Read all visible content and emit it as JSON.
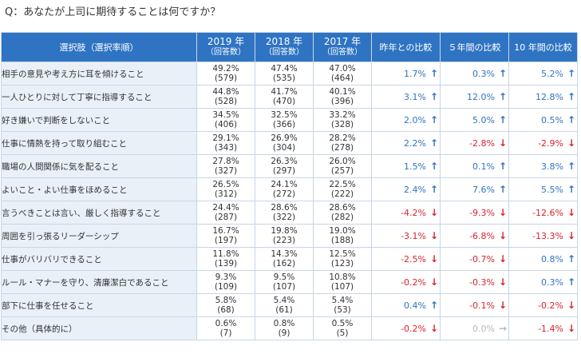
{
  "question": "Q：あなたが上司に期待することは何ですか？",
  "header": {
    "choice": "選択肢（選択率順）",
    "years": [
      {
        "year": "2019 年",
        "sub": "（回答数）"
      },
      {
        "year": "2018 年",
        "sub": "（回答数）"
      },
      {
        "year": "2017 年",
        "sub": "（回答数）"
      }
    ],
    "compare": [
      "昨年との比較",
      "５年間の比較",
      "10 年間の比較"
    ]
  },
  "colors": {
    "header": "#2f74c3",
    "choice_bg": "#e9f0f8",
    "up": "#2f74c3",
    "down": "#d9232e",
    "flat": "#b8b8b8",
    "border": "#c8d6e6"
  },
  "chart_data": {
    "type": "table",
    "rows": [
      {
        "label": "相手の意見や考え方に耳を傾けること",
        "y2019": "49.2%",
        "n2019": "(579)",
        "y2018": "47.4%",
        "n2018": "(535)",
        "y2017": "47.0%",
        "n2017": "(464)",
        "c1": "1.7%",
        "d1": "up",
        "c5": "0.3%",
        "d5": "up",
        "c10": "5.2%",
        "d10": "up"
      },
      {
        "label": "一人ひとりに対して丁寧に指導すること",
        "y2019": "44.8%",
        "n2019": "(528)",
        "y2018": "41.7%",
        "n2018": "(470)",
        "y2017": "40.1%",
        "n2017": "(396)",
        "c1": "3.1%",
        "d1": "up",
        "c5": "12.0%",
        "d5": "up",
        "c10": "12.8%",
        "d10": "up"
      },
      {
        "label": "好き嫌いで判断をしないこと",
        "y2019": "34.5%",
        "n2019": "(406)",
        "y2018": "32.5%",
        "n2018": "(366)",
        "y2017": "33.2%",
        "n2017": "(328)",
        "c1": "2.0%",
        "d1": "up",
        "c5": "5.0%",
        "d5": "up",
        "c10": "0.5%",
        "d10": "up"
      },
      {
        "label": "仕事に情熱を持って取り組むこと",
        "y2019": "29.1%",
        "n2019": "(343)",
        "y2018": "26.9%",
        "n2018": "(304)",
        "y2017": "28.2%",
        "n2017": "(278)",
        "c1": "2.2%",
        "d1": "up",
        "c5": "-2.8%",
        "d5": "down",
        "c10": "-2.9%",
        "d10": "down"
      },
      {
        "label": "職場の人間関係に気を配ること",
        "y2019": "27.8%",
        "n2019": "(327)",
        "y2018": "26.3%",
        "n2018": "(297)",
        "y2017": "26.0%",
        "n2017": "(257)",
        "c1": "1.5%",
        "d1": "up",
        "c5": "0.1%",
        "d5": "up",
        "c10": "3.8%",
        "d10": "up"
      },
      {
        "label": "よいこと・よい仕事をほめること",
        "y2019": "26.5%",
        "n2019": "(312)",
        "y2018": "24.1%",
        "n2018": "(272)",
        "y2017": "22.5%",
        "n2017": "(222)",
        "c1": "2.4%",
        "d1": "up",
        "c5": "7.6%",
        "d5": "up",
        "c10": "5.5%",
        "d10": "up"
      },
      {
        "label": "言うべきことは言い、厳しく指導すること",
        "y2019": "24.4%",
        "n2019": "(287)",
        "y2018": "28.6%",
        "n2018": "(322)",
        "y2017": "28.6%",
        "n2017": "(282)",
        "c1": "-4.2%",
        "d1": "down",
        "c5": "-9.3%",
        "d5": "down",
        "c10": "-12.6%",
        "d10": "down"
      },
      {
        "label": "周囲を引っ張るリーダーシップ",
        "y2019": "16.7%",
        "n2019": "(197)",
        "y2018": "19.8%",
        "n2018": "(223)",
        "y2017": "19.0%",
        "n2017": "(188)",
        "c1": "-3.1%",
        "d1": "down",
        "c5": "-6.8%",
        "d5": "down",
        "c10": "-13.3%",
        "d10": "down"
      },
      {
        "label": "仕事がバリバリできること",
        "y2019": "11.8%",
        "n2019": "(139)",
        "y2018": "14.3%",
        "n2018": "(162)",
        "y2017": "12.5%",
        "n2017": "(123)",
        "c1": "-2.5%",
        "d1": "down",
        "c5": "-0.7%",
        "d5": "down",
        "c10": "0.8%",
        "d10": "up"
      },
      {
        "label": "ルール・マナーを守り、清廉潔白であること",
        "y2019": "9.3%",
        "n2019": "(109)",
        "y2018": "9.5%",
        "n2018": "(107)",
        "y2017": "10.8%",
        "n2017": "(107)",
        "c1": "-0.2%",
        "d1": "down",
        "c5": "-0.3%",
        "d5": "down",
        "c10": "0.3%",
        "d10": "up"
      },
      {
        "label": "部下に仕事を任せること",
        "y2019": "5.8%",
        "n2019": "(68)",
        "y2018": "5.4%",
        "n2018": "(61)",
        "y2017": "5.4%",
        "n2017": "(53)",
        "c1": "0.4%",
        "d1": "up",
        "c5": "-0.1%",
        "d5": "down",
        "c10": "-0.2%",
        "d10": "down"
      },
      {
        "label": "その他（具体的に）",
        "y2019": "0.6%",
        "n2019": "(7)",
        "y2018": "0.8%",
        "n2018": "(9)",
        "y2017": "0.5%",
        "n2017": "(5)",
        "c1": "-0.2%",
        "d1": "down",
        "c5": "0.0%",
        "d5": "flat",
        "c10": "-1.4%",
        "d10": "down"
      }
    ]
  }
}
